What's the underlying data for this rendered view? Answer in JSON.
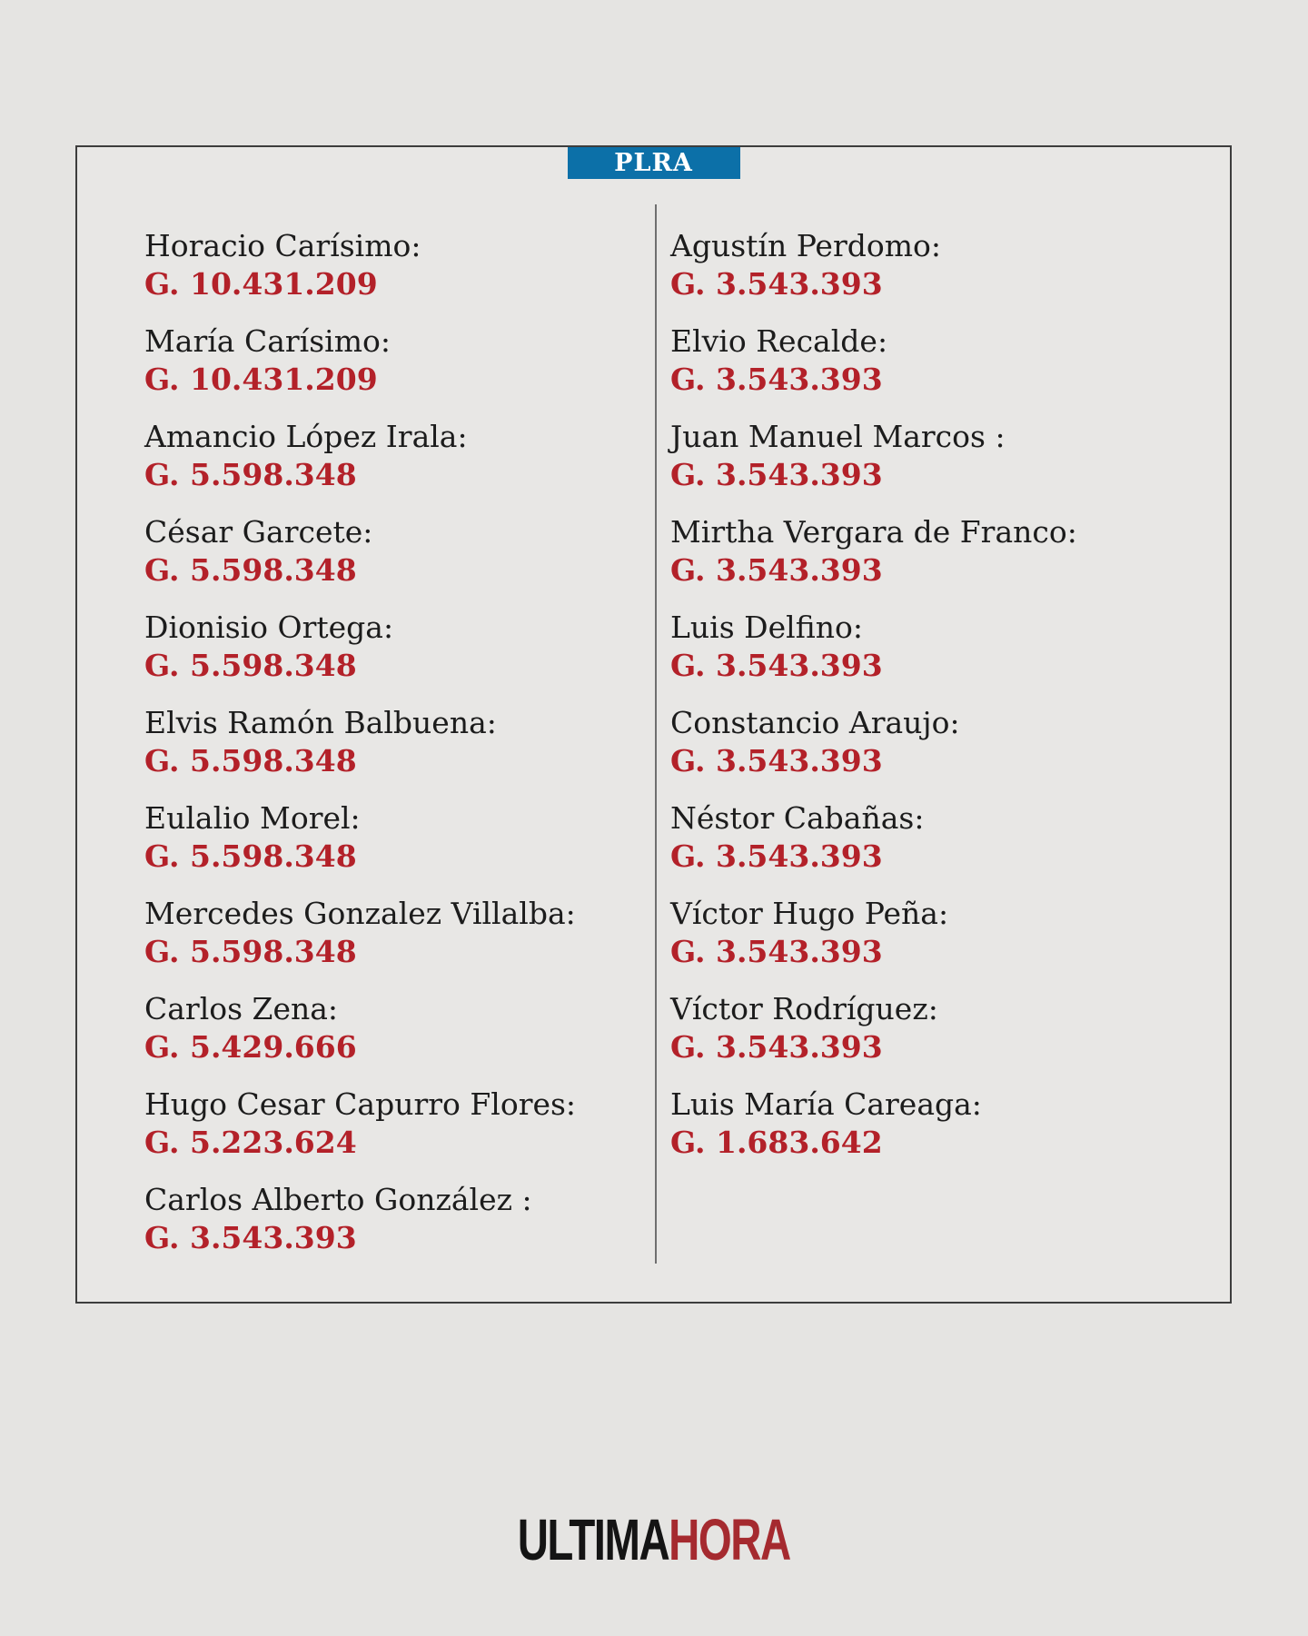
{
  "badge": {
    "label": "PLRA",
    "bg_color": "#0c70a8",
    "text_color": "#ffffff"
  },
  "colors": {
    "page_bg": "#e5e4e2",
    "card_bg": "#e8e7e5",
    "card_border": "#3d3d3d",
    "divider": "#6f6f6f",
    "name_text": "#1c1c1c",
    "amount_text": "#b32129",
    "logo_black": "#141414",
    "logo_red": "#a52a2f"
  },
  "left_column": [
    {
      "name": "Horacio Carísimo:",
      "amount": "G. 10.431.209"
    },
    {
      "name": "María Carísimo:",
      "amount": "G. 10.431.209"
    },
    {
      "name": "Amancio López Irala:",
      "amount": "G. 5.598.348"
    },
    {
      "name": "César Garcete:",
      "amount": "G. 5.598.348"
    },
    {
      "name": "Dionisio Ortega:",
      "amount": "G. 5.598.348"
    },
    {
      "name": "Elvis Ramón Balbuena:",
      "amount": "G. 5.598.348"
    },
    {
      "name": "Eulalio Morel:",
      "amount": "G. 5.598.348"
    },
    {
      "name": "Mercedes Gonzalez Villalba:",
      "amount": "G. 5.598.348"
    },
    {
      "name": "Carlos Zena:",
      "amount": "G. 5.429.666"
    },
    {
      "name": "Hugo Cesar Capurro Flores:",
      "amount": "G. 5.223.624"
    },
    {
      "name": "Carlos Alberto González :",
      "amount": "G. 3.543.393"
    }
  ],
  "right_column": [
    {
      "name": "Agustín Perdomo:",
      "amount": "G. 3.543.393"
    },
    {
      "name": "Elvio Recalde:",
      "amount": "G. 3.543.393"
    },
    {
      "name": "Juan Manuel Marcos :",
      "amount": "G. 3.543.393"
    },
    {
      "name": "Mirtha Vergara de Franco:",
      "amount": "G. 3.543.393"
    },
    {
      "name": "Luis Delfino:",
      "amount": "G. 3.543.393"
    },
    {
      "name": "Constancio Araujo:",
      "amount": "G. 3.543.393"
    },
    {
      "name": "Néstor Cabañas:",
      "amount": "G. 3.543.393"
    },
    {
      "name": "Víctor Hugo Peña:",
      "amount": "G. 3.543.393"
    },
    {
      "name": "Víctor Rodríguez:",
      "amount": "G. 3.543.393"
    },
    {
      "name": "Luis María Careaga:",
      "amount": "G. 1.683.642"
    }
  ],
  "logo": {
    "part1": "ULTIMA",
    "part2": "HORA"
  }
}
